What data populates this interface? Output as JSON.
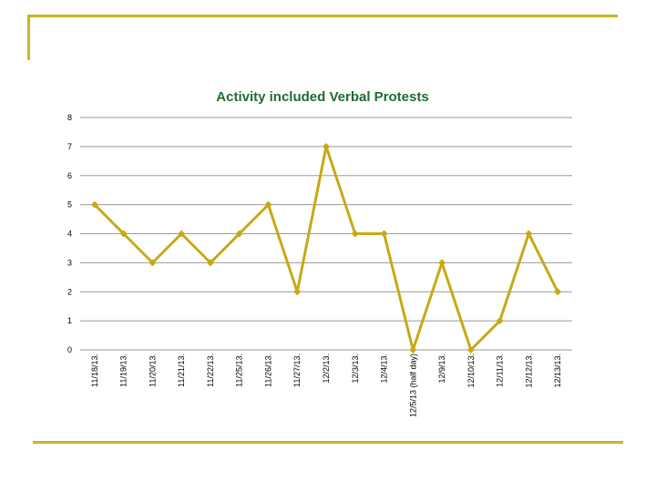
{
  "chart_data": {
    "type": "line",
    "title": "Activity included Verbal Protests",
    "xlabel": "",
    "ylabel": "",
    "ylim": [
      0,
      8
    ],
    "yticks": [
      0,
      1,
      2,
      3,
      4,
      5,
      6,
      7,
      8
    ],
    "grid": true,
    "categories": [
      "11/18/13.",
      "11/19/13.",
      "11/20/13.",
      "11/21/13.",
      "11/22/13.",
      "11/25/13.",
      "11/26/13.",
      "11/27/13.",
      "12/2/13.",
      "12/3/13.",
      "12/4/13.",
      "12/5/13 (half day)",
      "12/9/13.",
      "12/10/13.",
      "12/11/13.",
      "12/12/13.",
      "12/13/13."
    ],
    "series": [
      {
        "name": "Verbal Protests",
        "values": [
          5,
          4,
          3,
          4,
          3,
          4,
          5,
          2,
          7,
          4,
          4,
          0,
          3,
          0,
          1,
          4,
          2
        ]
      }
    ],
    "colors": {
      "line": "#c8a816",
      "marker": "#c8a816",
      "grid": "#9a9a9a",
      "title": "#1f6b33",
      "frame": "#c8b52c"
    }
  }
}
